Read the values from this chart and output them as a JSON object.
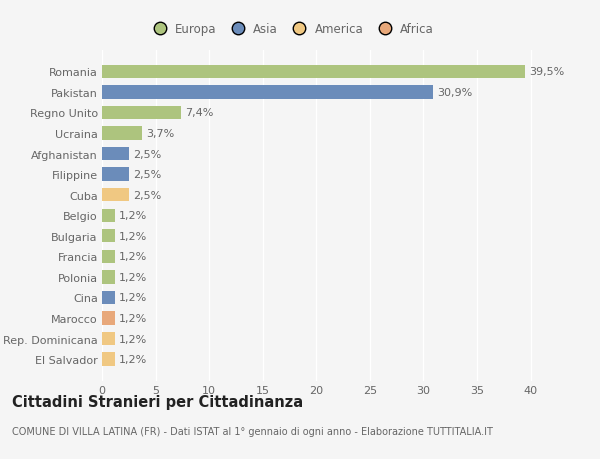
{
  "categories": [
    "El Salvador",
    "Rep. Dominicana",
    "Marocco",
    "Cina",
    "Polonia",
    "Francia",
    "Bulgaria",
    "Belgio",
    "Cuba",
    "Filippine",
    "Afghanistan",
    "Ucraina",
    "Regno Unito",
    "Pakistan",
    "Romania"
  ],
  "values": [
    1.2,
    1.2,
    1.2,
    1.2,
    1.2,
    1.2,
    1.2,
    1.2,
    2.5,
    2.5,
    2.5,
    3.7,
    7.4,
    30.9,
    39.5
  ],
  "labels": [
    "1,2%",
    "1,2%",
    "1,2%",
    "1,2%",
    "1,2%",
    "1,2%",
    "1,2%",
    "1,2%",
    "2,5%",
    "2,5%",
    "2,5%",
    "3,7%",
    "7,4%",
    "30,9%",
    "39,5%"
  ],
  "colors": [
    "#f0c882",
    "#f0c882",
    "#e8a87a",
    "#6b8cba",
    "#adc47e",
    "#adc47e",
    "#adc47e",
    "#adc47e",
    "#f0c882",
    "#6b8cba",
    "#6b8cba",
    "#adc47e",
    "#adc47e",
    "#6b8cba",
    "#adc47e"
  ],
  "legend_labels": [
    "Europa",
    "Asia",
    "America",
    "Africa"
  ],
  "legend_colors": [
    "#adc47e",
    "#6b8cba",
    "#f0c882",
    "#e8a87a"
  ],
  "title": "Cittadini Stranieri per Cittadinanza",
  "subtitle": "COMUNE DI VILLA LATINA (FR) - Dati ISTAT al 1° gennaio di ogni anno - Elaborazione TUTTITALIA.IT",
  "xlim": [
    0,
    42
  ],
  "xticks": [
    0,
    5,
    10,
    15,
    20,
    25,
    30,
    35,
    40
  ],
  "bg_color": "#f5f5f5",
  "bar_height": 0.65,
  "label_fontsize": 8,
  "tick_fontsize": 8,
  "title_fontsize": 10.5,
  "subtitle_fontsize": 7
}
